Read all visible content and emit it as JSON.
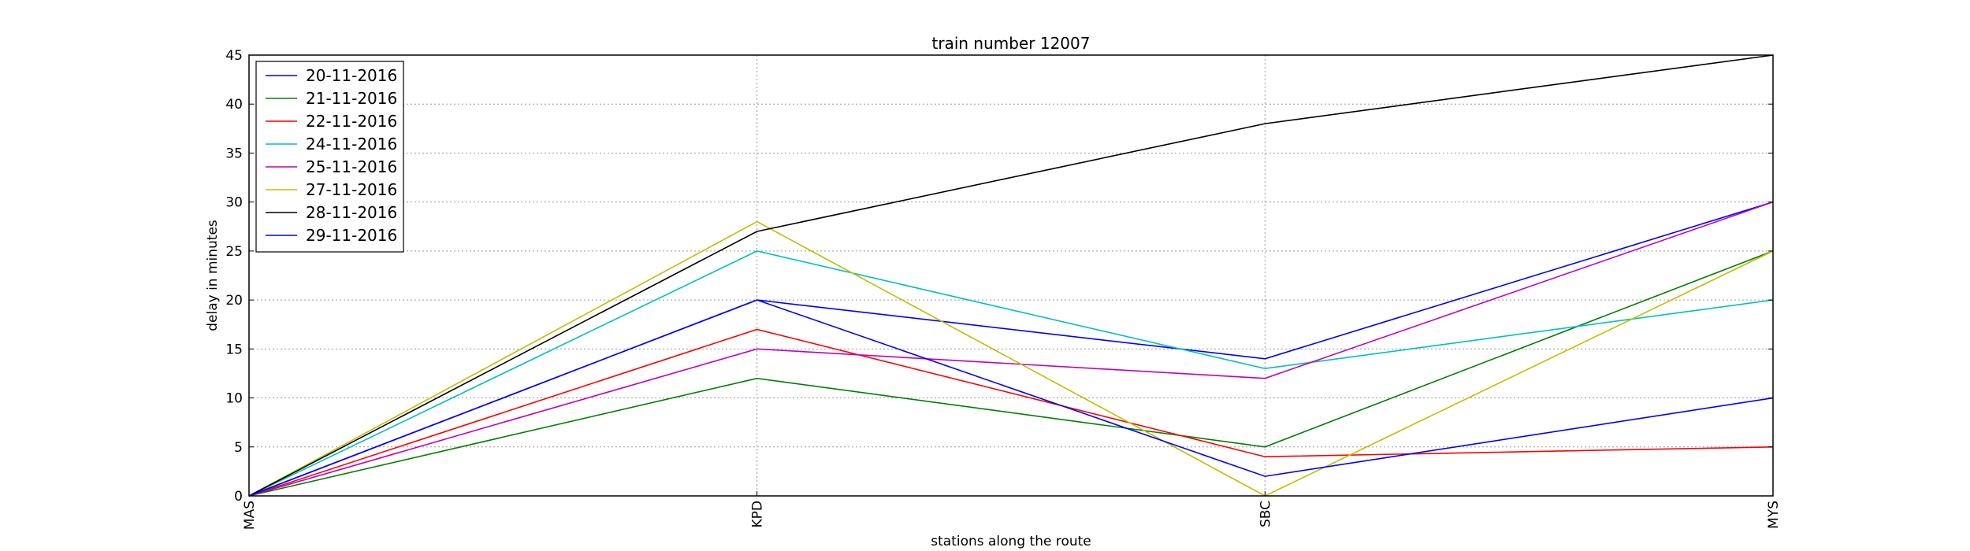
{
  "chart_data": {
    "type": "line",
    "title": "train number 12007",
    "xlabel": "stations along the route",
    "ylabel": "delay in minutes",
    "categories": [
      "MAS",
      "KPD",
      "SBC",
      "MYS"
    ],
    "yticks": [
      "0",
      "5",
      "10",
      "15",
      "20",
      "25",
      "30",
      "35",
      "40",
      "45"
    ],
    "ylim": [
      0,
      45
    ],
    "grid": true,
    "legend_position": "top-left",
    "series": [
      {
        "name": "20-11-2016",
        "color": "#0000ff",
        "values": [
          0,
          20,
          14,
          30
        ]
      },
      {
        "name": "21-11-2016",
        "color": "#008000",
        "values": [
          0,
          12,
          5,
          25
        ]
      },
      {
        "name": "22-11-2016",
        "color": "#ff0000",
        "values": [
          0,
          17,
          4,
          5
        ]
      },
      {
        "name": "24-11-2016",
        "color": "#00bfbf",
        "values": [
          0,
          25,
          13,
          20
        ]
      },
      {
        "name": "25-11-2016",
        "color": "#bf00bf",
        "values": [
          0,
          15,
          12,
          30
        ]
      },
      {
        "name": "27-11-2016",
        "color": "#bfbf00",
        "values": [
          0,
          28,
          0,
          25
        ]
      },
      {
        "name": "28-11-2016",
        "color": "#000000",
        "values": [
          0,
          27,
          38,
          45
        ]
      },
      {
        "name": "29-11-2016",
        "color": "#0000ff",
        "values": [
          0,
          20,
          2,
          10
        ]
      }
    ]
  }
}
